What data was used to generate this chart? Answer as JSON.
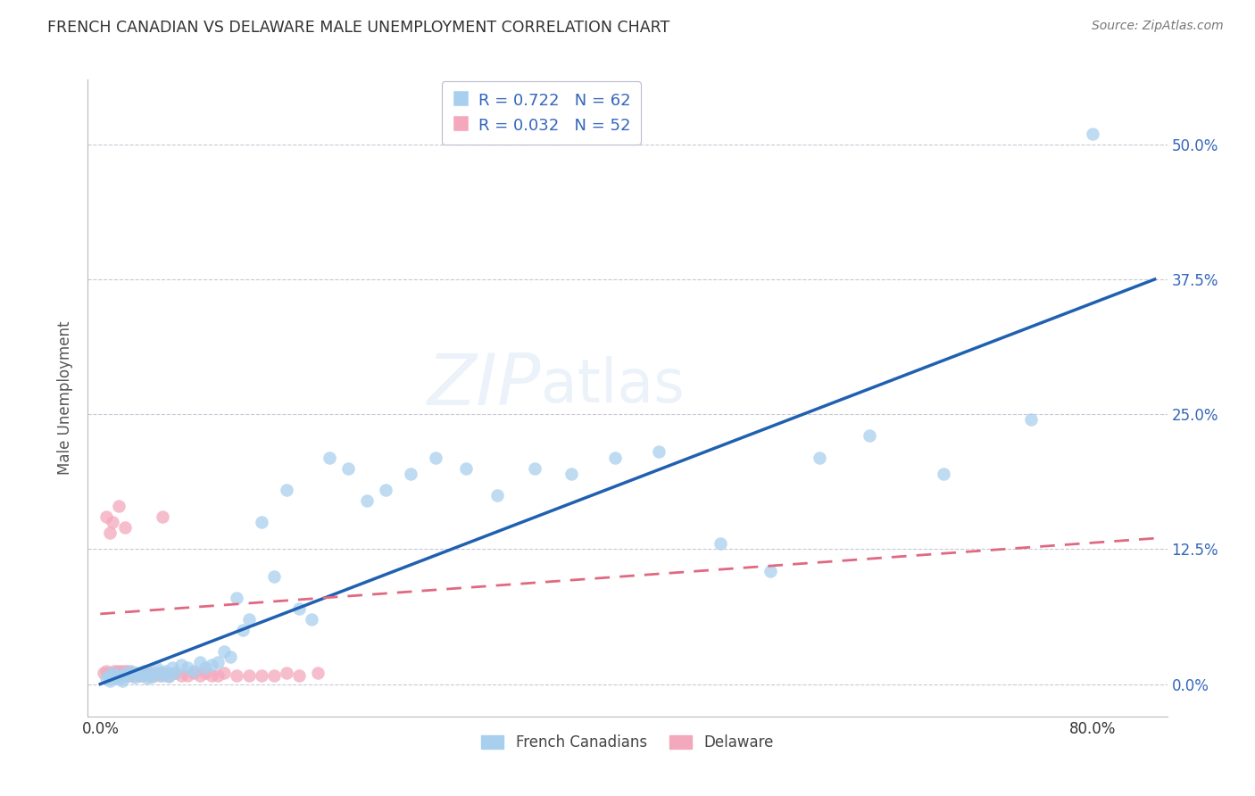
{
  "title": "FRENCH CANADIAN VS DELAWARE MALE UNEMPLOYMENT CORRELATION CHART",
  "source": "Source: ZipAtlas.com",
  "ylabel": "Male Unemployment",
  "ytick_labels": [
    "0.0%",
    "12.5%",
    "25.0%",
    "37.5%",
    "50.0%"
  ],
  "ytick_values": [
    0.0,
    0.125,
    0.25,
    0.375,
    0.5
  ],
  "xtick_values": [
    0.0,
    0.2,
    0.4,
    0.6,
    0.8
  ],
  "xtick_labels": [
    "0.0%",
    "",
    "",
    "",
    "80.0%"
  ],
  "xlim": [
    -0.01,
    0.86
  ],
  "ylim": [
    -0.03,
    0.56
  ],
  "watermark": "ZIPatlas",
  "legend_r1": "R = 0.722",
  "legend_n1": "N = 62",
  "legend_r2": "R = 0.032",
  "legend_n2": "N = 52",
  "legend_label1": "French Canadians",
  "legend_label2": "Delaware",
  "blue_color": "#A8D0EE",
  "pink_color": "#F4A8BC",
  "blue_line_color": "#2060B0",
  "pink_line_color": "#E06880",
  "fc_x": [
    0.005,
    0.007,
    0.008,
    0.01,
    0.012,
    0.013,
    0.015,
    0.016,
    0.018,
    0.02,
    0.022,
    0.025,
    0.028,
    0.03,
    0.032,
    0.035,
    0.038,
    0.04,
    0.042,
    0.045,
    0.048,
    0.05,
    0.052,
    0.055,
    0.058,
    0.06,
    0.065,
    0.07,
    0.075,
    0.08,
    0.085,
    0.09,
    0.095,
    0.1,
    0.105,
    0.11,
    0.115,
    0.12,
    0.13,
    0.14,
    0.15,
    0.16,
    0.17,
    0.185,
    0.2,
    0.215,
    0.23,
    0.25,
    0.27,
    0.295,
    0.32,
    0.35,
    0.38,
    0.415,
    0.45,
    0.5,
    0.54,
    0.58,
    0.62,
    0.68,
    0.75,
    0.8
  ],
  "fc_y": [
    0.005,
    0.008,
    0.003,
    0.01,
    0.005,
    0.007,
    0.008,
    0.005,
    0.003,
    0.01,
    0.008,
    0.012,
    0.006,
    0.01,
    0.008,
    0.012,
    0.005,
    0.01,
    0.007,
    0.015,
    0.01,
    0.008,
    0.012,
    0.007,
    0.015,
    0.01,
    0.018,
    0.015,
    0.012,
    0.02,
    0.015,
    0.018,
    0.02,
    0.03,
    0.025,
    0.08,
    0.05,
    0.06,
    0.15,
    0.1,
    0.18,
    0.07,
    0.06,
    0.21,
    0.2,
    0.17,
    0.18,
    0.195,
    0.21,
    0.2,
    0.175,
    0.2,
    0.195,
    0.21,
    0.215,
    0.13,
    0.105,
    0.21,
    0.23,
    0.195,
    0.245,
    0.51
  ],
  "de_x": [
    0.003,
    0.005,
    0.007,
    0.008,
    0.01,
    0.011,
    0.012,
    0.013,
    0.014,
    0.015,
    0.016,
    0.017,
    0.018,
    0.019,
    0.02,
    0.021,
    0.022,
    0.023,
    0.025,
    0.027,
    0.03,
    0.033,
    0.035,
    0.038,
    0.04,
    0.042,
    0.045,
    0.048,
    0.05,
    0.055,
    0.06,
    0.065,
    0.07,
    0.075,
    0.08,
    0.085,
    0.09,
    0.095,
    0.1,
    0.11,
    0.12,
    0.13,
    0.14,
    0.15,
    0.16,
    0.175,
    0.005,
    0.008,
    0.01,
    0.015,
    0.02,
    0.05
  ],
  "de_y": [
    0.01,
    0.012,
    0.008,
    0.01,
    0.008,
    0.012,
    0.01,
    0.008,
    0.012,
    0.008,
    0.01,
    0.012,
    0.01,
    0.008,
    0.012,
    0.01,
    0.012,
    0.008,
    0.01,
    0.008,
    0.01,
    0.008,
    0.01,
    0.008,
    0.01,
    0.008,
    0.01,
    0.008,
    0.01,
    0.008,
    0.01,
    0.008,
    0.008,
    0.01,
    0.008,
    0.01,
    0.008,
    0.008,
    0.01,
    0.008,
    0.008,
    0.008,
    0.008,
    0.01,
    0.008,
    0.01,
    0.155,
    0.14,
    0.15,
    0.165,
    0.145,
    0.155
  ]
}
